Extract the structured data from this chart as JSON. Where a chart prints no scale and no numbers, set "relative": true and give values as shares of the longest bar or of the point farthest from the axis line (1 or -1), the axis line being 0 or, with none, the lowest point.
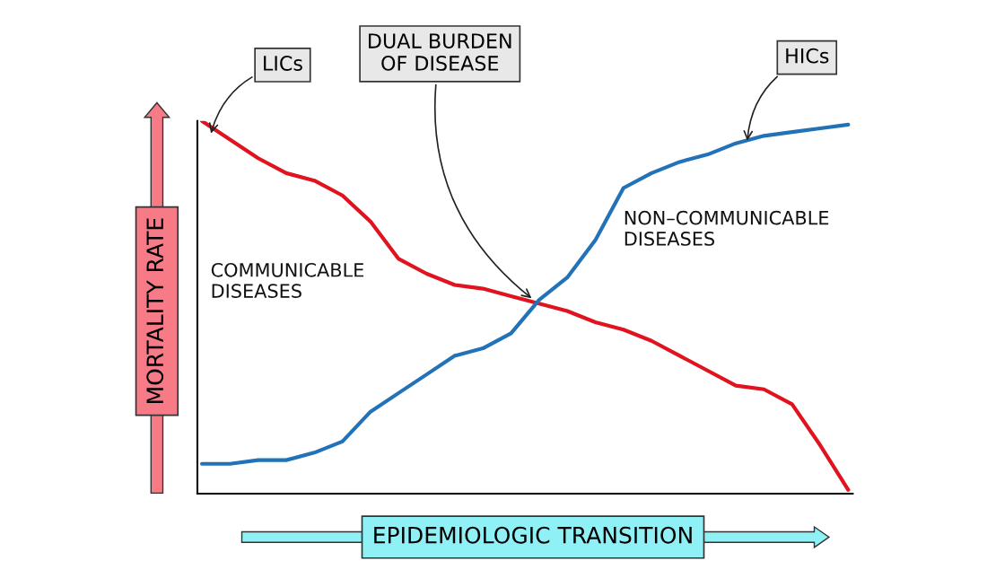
{
  "chart_data": {
    "type": "line",
    "relative": true,
    "legend": false,
    "tick_labels": false,
    "xlabel": "EPIDEMIOLOGIC TRANSITION",
    "ylabel": "MORTALITY RATE",
    "categories": [
      null,
      null,
      null,
      null,
      null,
      null,
      null,
      null,
      null,
      null,
      null,
      null,
      null,
      null,
      null,
      null,
      null,
      null,
      null,
      null,
      null,
      null,
      null,
      null
    ],
    "series": [
      {
        "name": "COMMUNICABLE DISEASES",
        "color": "#e0131f",
        "values": [
          1,
          0.95,
          0.9,
          0.86,
          0.84,
          0.8,
          0.73,
          0.63,
          0.59,
          0.56,
          0.55,
          0.53,
          0.51,
          0.49,
          0.46,
          0.44,
          0.41,
          0.37,
          0.33,
          0.29,
          0.28,
          0.24,
          0.13,
          0.01
        ]
      },
      {
        "name": "NON–COMMUNICABLE DISEASES",
        "color": "#2272b8",
        "values": [
          0.08,
          0.08,
          0.09,
          0.09,
          0.11,
          0.14,
          0.22,
          0.27,
          0.32,
          0.37,
          0.39,
          0.43,
          0.52,
          0.58,
          0.68,
          0.82,
          0.86,
          0.89,
          0.91,
          0.94,
          0.96,
          0.97,
          0.98,
          0.99
        ]
      }
    ],
    "annotations": [
      "LICs",
      "DUAL BURDEN OF DISEASE",
      "HICs"
    ]
  }
}
